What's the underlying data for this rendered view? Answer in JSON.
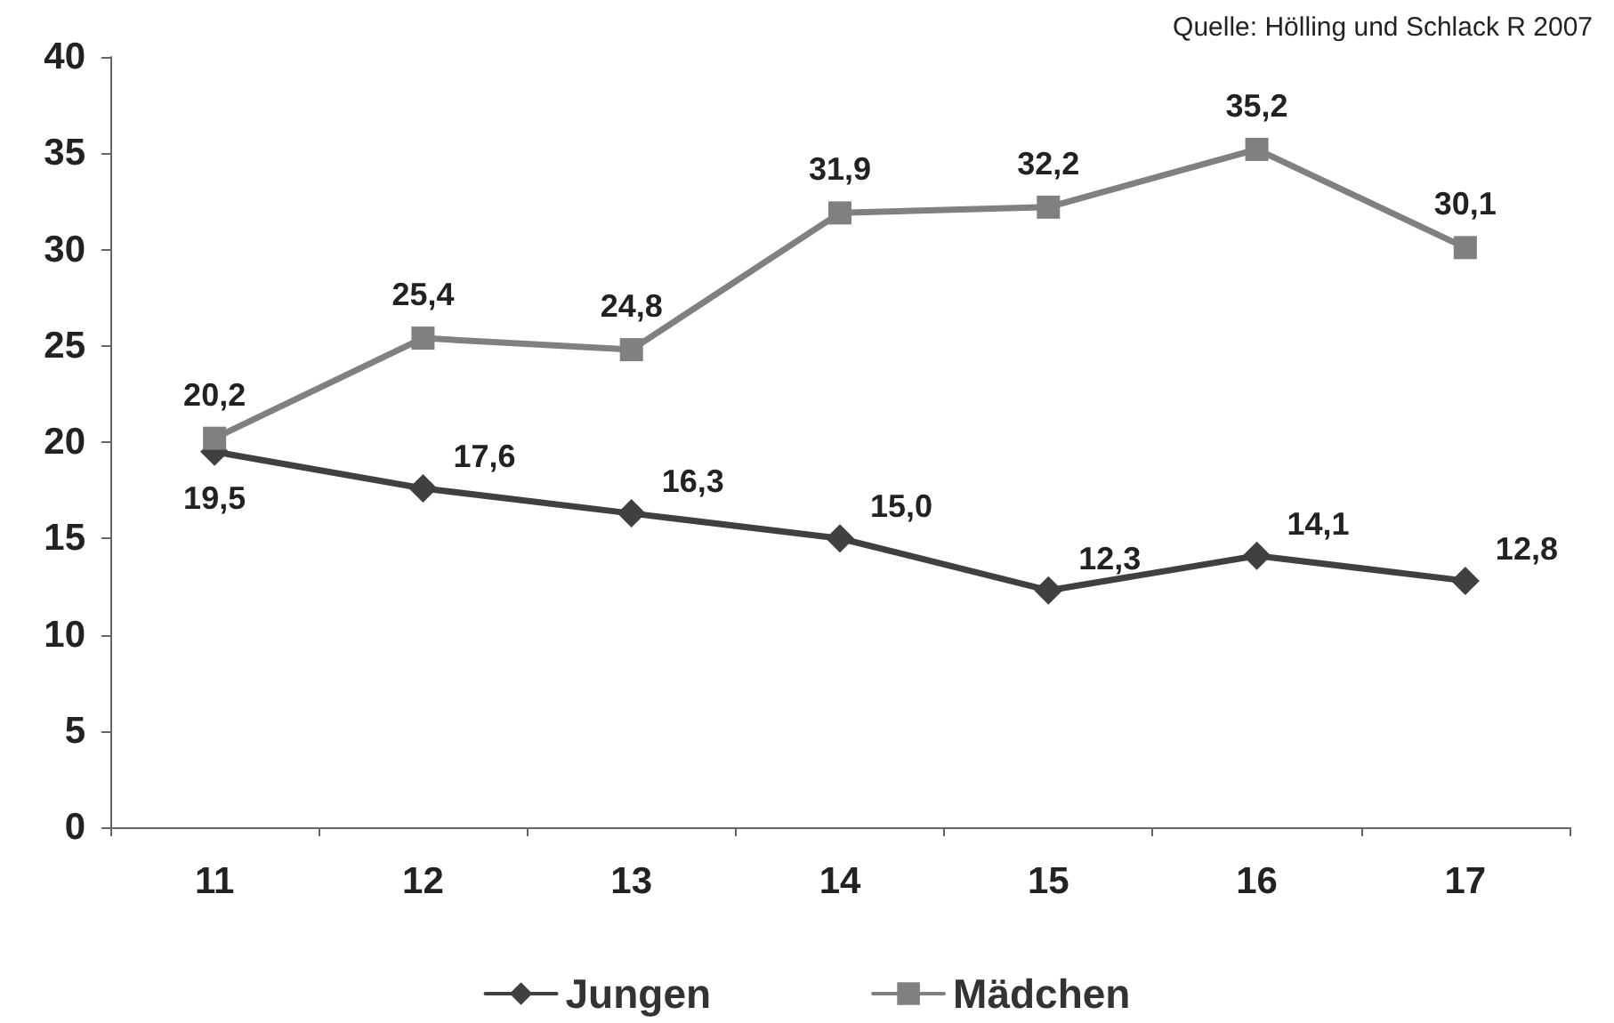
{
  "chart_data": {
    "type": "line",
    "categories": [
      "11",
      "12",
      "13",
      "14",
      "15",
      "16",
      "17"
    ],
    "series": [
      {
        "name": "Jungen",
        "color": "#404040",
        "marker": "diamond",
        "values": [
          19.5,
          17.6,
          16.3,
          15.0,
          12.3,
          14.1,
          12.8
        ],
        "value_labels": [
          "19,5",
          "17,6",
          "16,3",
          "15,0",
          "12,3",
          "14,1",
          "12,8"
        ]
      },
      {
        "name": "Mädchen",
        "color": "#808080",
        "marker": "square",
        "values": [
          20.2,
          25.4,
          24.8,
          31.9,
          32.2,
          35.2,
          30.1
        ],
        "value_labels": [
          "20,2",
          "25,4",
          "24,8",
          "31,9",
          "32,2",
          "35,2",
          "30,1"
        ]
      }
    ],
    "ylim": [
      0,
      40
    ],
    "yticks": [
      0,
      5,
      10,
      15,
      20,
      25,
      30,
      35,
      40
    ],
    "grid": false,
    "legend": "bottom",
    "annotations": [
      "Quelle: Hölling und Schlack R 2007"
    ]
  }
}
